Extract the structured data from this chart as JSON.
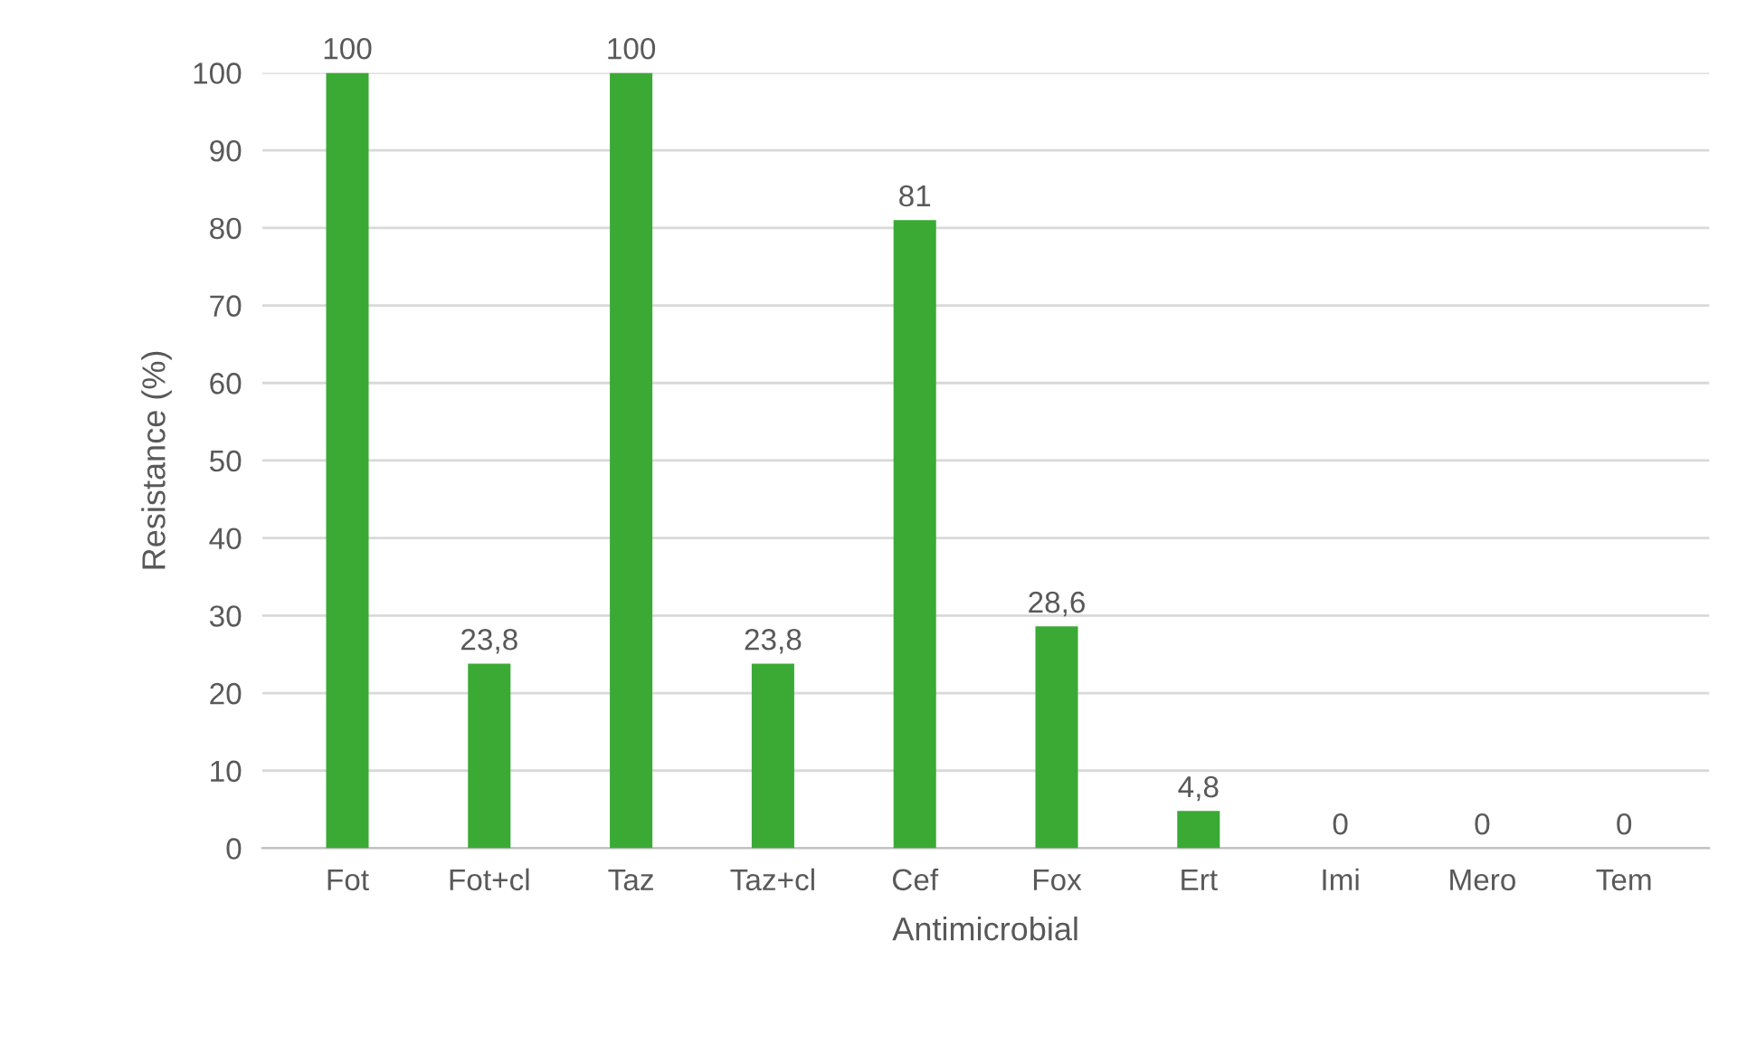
{
  "chart_data": {
    "type": "bar",
    "xlabel": "Antimicrobial",
    "ylabel": "Resistance (%)",
    "categories": [
      "Fot",
      "Fot+cl",
      "Taz",
      "Taz+cl",
      "Cef",
      "Fox",
      "Ert",
      "Imi",
      "Mero",
      "Tem"
    ],
    "values": [
      100,
      23.8,
      100,
      23.8,
      81,
      28.6,
      4.8,
      0,
      0,
      0
    ],
    "value_labels": [
      "100",
      "23,8",
      "100",
      "23,8",
      "81",
      "28,6",
      "4,8",
      "0",
      "0",
      "0"
    ],
    "color": "#3aaa35",
    "ylim": [
      0,
      100
    ],
    "yticks": [
      0,
      10,
      20,
      30,
      40,
      50,
      60,
      70,
      80,
      90,
      100
    ],
    "grid": "y"
  }
}
